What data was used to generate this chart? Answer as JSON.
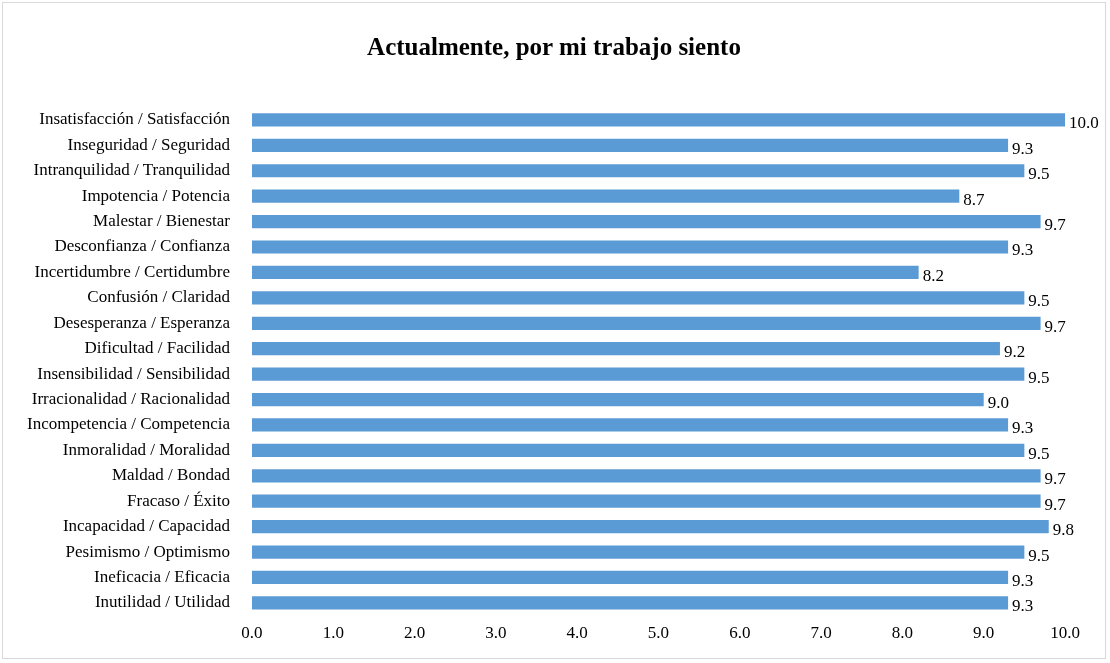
{
  "chart_data": {
    "type": "bar",
    "orientation": "horizontal",
    "title": "Actualmente, por mi trabajo siento",
    "categories": [
      "Insatisfacción / Satisfacción",
      "Inseguridad / Seguridad",
      "Intranquilidad / Tranquilidad",
      "Impotencia / Potencia",
      "Malestar / Bienestar",
      "Desconfianza / Confianza",
      "Incertidumbre / Certidumbre",
      "Confusión / Claridad",
      "Desesperanza / Esperanza",
      "Dificultad / Facilidad",
      "Insensibilidad / Sensibilidad",
      "Irracionalidad / Racionalidad",
      "Incompetencia / Competencia",
      "Inmoralidad / Moralidad",
      "Maldad / Bondad",
      "Fracaso / Éxito",
      "Incapacidad / Capacidad",
      "Pesimismo / Optimismo",
      "Ineficacia / Eficacia",
      "Inutilidad / Utilidad"
    ],
    "values": [
      10.0,
      9.3,
      9.5,
      8.7,
      9.7,
      9.3,
      8.2,
      9.5,
      9.7,
      9.2,
      9.5,
      9.0,
      9.3,
      9.5,
      9.7,
      9.7,
      9.8,
      9.5,
      9.3,
      9.3
    ],
    "value_labels": [
      "10.0",
      "9.3",
      "9.5",
      "8.7",
      "9.7",
      "9.3",
      "8.2",
      "9.5",
      "9.7",
      "9.2",
      "9.5",
      "9.0",
      "9.3",
      "9.5",
      "9.7",
      "9.7",
      "9.8",
      "9.5",
      "9.3",
      "9.3"
    ],
    "color": "#5b9bd5",
    "xlim": [
      0,
      10
    ],
    "xticks": [
      {
        "value": 0,
        "label": "0.0"
      },
      {
        "value": 1,
        "label": "1.0"
      },
      {
        "value": 2,
        "label": "2.0"
      },
      {
        "value": 3,
        "label": "3.0"
      },
      {
        "value": 4,
        "label": "4.0"
      },
      {
        "value": 5,
        "label": "5.0"
      },
      {
        "value": 6,
        "label": "6.0"
      },
      {
        "value": 7,
        "label": "7.0"
      },
      {
        "value": 8,
        "label": "8.0"
      },
      {
        "value": 9,
        "label": "9.0"
      },
      {
        "value": 10,
        "label": "10.0"
      }
    ],
    "grid": false,
    "legend": false
  }
}
